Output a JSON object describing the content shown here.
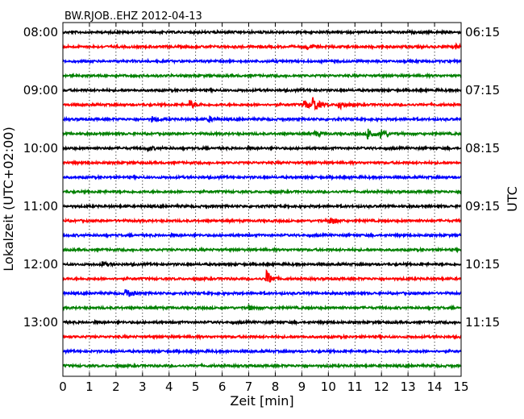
{
  "chart_data": {
    "type": "line",
    "chart_kind": "helicorder (seismogram day plot)",
    "title": "BW.RJOB..EHZ 2012-04-13",
    "xlabel": "Zeit  [min]",
    "ylabel_left": "Lokalzeit (UTC+02:00)",
    "ylabel_right": "UTC",
    "xlim": [
      0,
      15
    ],
    "x_ticks": [
      0,
      1,
      2,
      3,
      4,
      5,
      6,
      7,
      8,
      9,
      10,
      11,
      12,
      13,
      14,
      15
    ],
    "x_tick_labels": [
      "0",
      "1",
      "2",
      "3",
      "4",
      "5",
      "6",
      "7",
      "8",
      "9",
      "10",
      "11",
      "12",
      "13",
      "14",
      "15"
    ],
    "vertical_grid": "dotted",
    "line_duration_min": 15,
    "line_colors": [
      "#000000",
      "#ff0000",
      "#0000ff",
      "#008000"
    ],
    "left_time_labels": [
      "08:00",
      "09:00",
      "10:00",
      "11:00",
      "12:00",
      "13:00"
    ],
    "right_time_labels": [
      "06:15",
      "07:15",
      "08:15",
      "09:15",
      "10:15",
      "11:15"
    ],
    "label_every_n_lines": 4,
    "series_count": 24,
    "series": [
      {
        "local_start": "08:00",
        "color": "#000000",
        "events": []
      },
      {
        "local_start": "08:15",
        "color": "#ff0000",
        "events": [
          {
            "t_min": 9.2,
            "amp": 3.2
          },
          {
            "t_min": 14.8,
            "amp": 2.5
          }
        ]
      },
      {
        "local_start": "08:30",
        "color": "#0000ff",
        "events": []
      },
      {
        "local_start": "08:45",
        "color": "#008000",
        "events": []
      },
      {
        "local_start": "09:00",
        "color": "#000000",
        "events": []
      },
      {
        "local_start": "09:15",
        "color": "#ff0000",
        "events": [
          {
            "t_min": 4.8,
            "amp": 5
          },
          {
            "t_min": 9.1,
            "amp": 6
          },
          {
            "t_min": 9.45,
            "amp": 9
          },
          {
            "t_min": 10.4,
            "amp": 7
          }
        ]
      },
      {
        "local_start": "09:30",
        "color": "#0000ff",
        "events": [
          {
            "t_min": 3.4,
            "amp": 3
          },
          {
            "t_min": 5.5,
            "amp": 3
          }
        ]
      },
      {
        "local_start": "09:45",
        "color": "#008000",
        "events": [
          {
            "t_min": 9.5,
            "amp": 3
          },
          {
            "t_min": 11.5,
            "amp": 8
          },
          {
            "t_min": 12.0,
            "amp": 6
          }
        ]
      },
      {
        "local_start": "10:00",
        "color": "#000000",
        "events": [
          {
            "t_min": 3.2,
            "amp": 3
          }
        ]
      },
      {
        "local_start": "10:15",
        "color": "#ff0000",
        "events": []
      },
      {
        "local_start": "10:30",
        "color": "#0000ff",
        "events": []
      },
      {
        "local_start": "10:45",
        "color": "#008000",
        "events": []
      },
      {
        "local_start": "11:00",
        "color": "#000000",
        "events": []
      },
      {
        "local_start": "11:15",
        "color": "#ff0000",
        "events": [
          {
            "t_min": 10.1,
            "amp": 5
          }
        ]
      },
      {
        "local_start": "11:30",
        "color": "#0000ff",
        "events": []
      },
      {
        "local_start": "11:45",
        "color": "#008000",
        "events": []
      },
      {
        "local_start": "12:00",
        "color": "#000000",
        "events": [
          {
            "t_min": 1.5,
            "amp": 2.5
          }
        ]
      },
      {
        "local_start": "12:15",
        "color": "#ff0000",
        "events": [
          {
            "t_min": 7.7,
            "amp": 9
          }
        ]
      },
      {
        "local_start": "12:30",
        "color": "#0000ff",
        "events": [
          {
            "t_min": 2.4,
            "amp": 6
          }
        ]
      },
      {
        "local_start": "12:45",
        "color": "#008000",
        "events": [
          {
            "t_min": 7.0,
            "amp": 3
          }
        ]
      },
      {
        "local_start": "13:00",
        "color": "#000000",
        "events": []
      },
      {
        "local_start": "13:15",
        "color": "#ff0000",
        "events": []
      },
      {
        "local_start": "13:30",
        "color": "#0000ff",
        "events": []
      },
      {
        "local_start": "13:45",
        "color": "#008000",
        "events": []
      }
    ]
  }
}
